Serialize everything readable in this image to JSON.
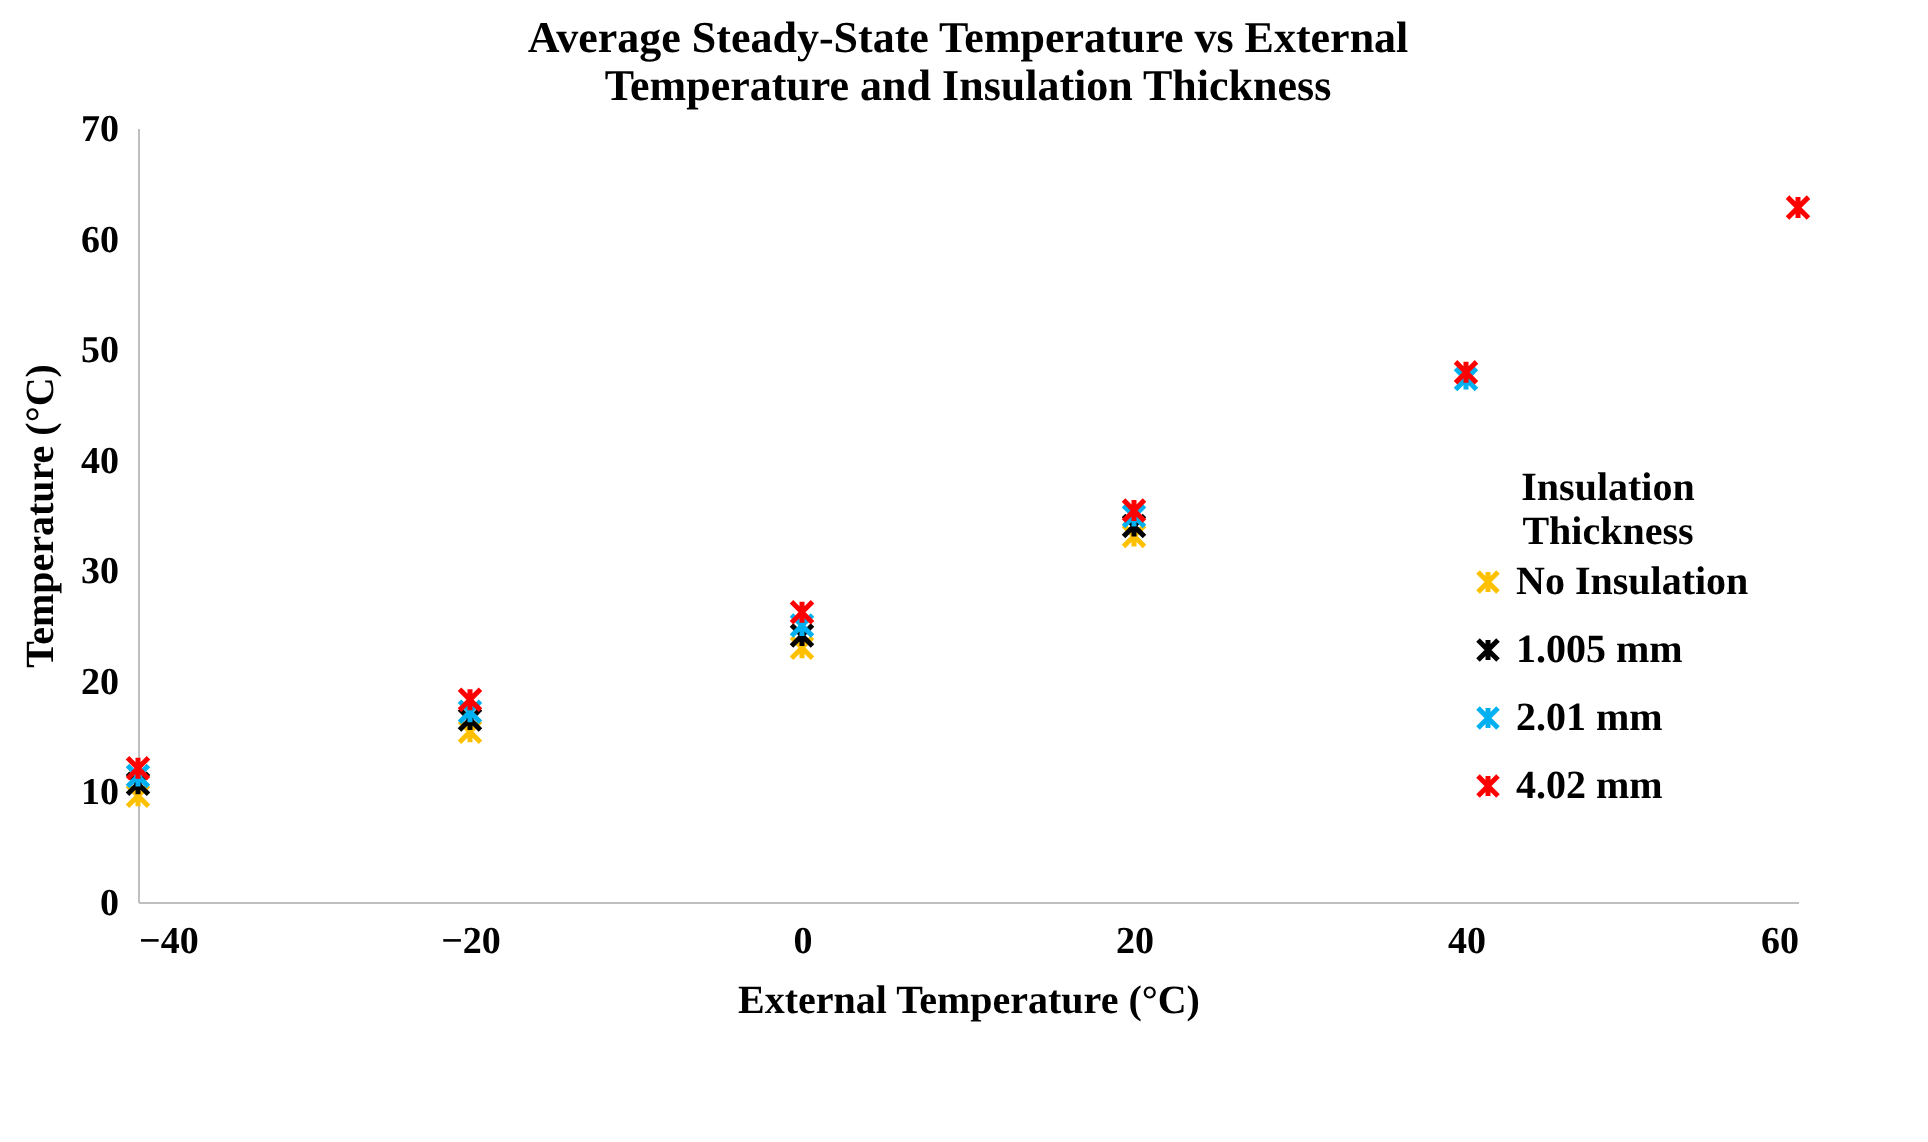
{
  "chart_data": {
    "type": "scatter",
    "title": "Average Steady-State Temperature vs External Temperature and Insulation Thickness",
    "xlabel": "External Temperature  (°C)",
    "ylabel": "Temperature  (°C)",
    "legend_title": "Insulation Thickness",
    "legend": "right",
    "marker": "cross",
    "grid": false,
    "x": [
      -40,
      -20,
      0,
      20,
      40,
      60
    ],
    "xlim": [
      -40,
      60
    ],
    "xticks": [
      -40,
      -20,
      0,
      20,
      40,
      60
    ],
    "ylim": [
      0,
      70
    ],
    "yticks": [
      0,
      10,
      20,
      30,
      40,
      50,
      60,
      70
    ],
    "series": [
      {
        "name": "No Insulation",
        "color": "#ffc000",
        "values": [
          9.6,
          15.4,
          23.0,
          33.1,
          null,
          null
        ]
      },
      {
        "name": "1.005 mm",
        "color": "#000000",
        "values": [
          10.7,
          16.5,
          24.1,
          34.0,
          null,
          null
        ]
      },
      {
        "name": "2.01 mm",
        "color": "#00b0f0",
        "values": [
          11.4,
          17.2,
          25.0,
          34.9,
          47.3,
          null
        ]
      },
      {
        "name": "4.02 mm",
        "color": "#ff0000",
        "values": [
          12.1,
          18.3,
          26.2,
          35.4,
          47.9,
          62.8
        ]
      }
    ]
  }
}
